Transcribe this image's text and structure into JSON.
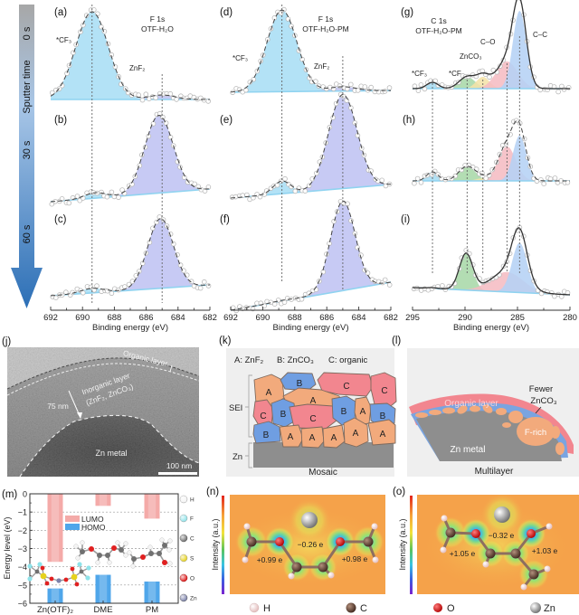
{
  "sputter_axis": {
    "title": "Sputter time",
    "ticks": [
      "0 s",
      "30 s",
      "60 s"
    ]
  },
  "panel_labels": {
    "j": "(j)",
    "k": "(k)",
    "l": "(l)",
    "m": "(m)",
    "n": "(n)",
    "o": "(o)"
  },
  "chart_data": [
    {
      "type": "line",
      "title": "F 1s",
      "subtitle": "OTF-H₂O",
      "xlabel": "Binding energy (eV)",
      "ylabel": "",
      "xlim": [
        692,
        682
      ],
      "xticks": [
        692,
        690,
        688,
        686,
        684,
        682
      ],
      "reference_lines": [
        689.4,
        685.0
      ],
      "annotations": [
        "*CF₃",
        "ZnF₂"
      ],
      "panels": [
        {
          "label": "(a)",
          "sputter_time": "0 s",
          "background": [
            0,
            0
          ],
          "components": [
            {
              "name": "*CF₃",
              "center": 689.4,
              "fwhm": 2.4,
              "amplitude": 0.97,
              "color": "#a9def5"
            },
            {
              "name": "ZnF₂",
              "center": 685.0,
              "fwhm": 1.9,
              "amplitude": 0.05,
              "color": "#bfc3f2"
            }
          ]
        },
        {
          "label": "(b)",
          "sputter_time": "30 s",
          "background": [
            0.02,
            0.16
          ],
          "components": [
            {
              "name": "*CF₃",
              "center": 689.2,
              "fwhm": 1.6,
              "amplitude": 0.06,
              "color": "#a9def5"
            },
            {
              "name": "ZnF₂",
              "center": 685.2,
              "fwhm": 2.1,
              "amplitude": 0.86,
              "color": "#bfc3f2"
            }
          ]
        },
        {
          "label": "(c)",
          "sputter_time": "60 s",
          "background": [
            0.08,
            0.2
          ],
          "components": [
            {
              "name": "*CF₃",
              "center": 689.4,
              "fwhm": 1.7,
              "amplitude": 0.05,
              "color": "#a9def5"
            },
            {
              "name": "ZnF₂",
              "center": 685.1,
              "fwhm": 1.9,
              "amplitude": 0.77,
              "color": "#bfc3f2"
            }
          ]
        }
      ]
    },
    {
      "type": "line",
      "title": "F 1s",
      "subtitle": "OTF-H₂O-PM",
      "xlabel": "Binding energy (eV)",
      "ylabel": "",
      "xlim": [
        692,
        682
      ],
      "xticks": [
        692,
        690,
        688,
        686,
        684,
        682
      ],
      "reference_lines": [
        688.8,
        685.0
      ],
      "annotations": [
        "*CF₃",
        "ZnF₂"
      ],
      "panels": [
        {
          "label": "(d)",
          "sputter_time": "0 s",
          "background": [
            0,
            0.02
          ],
          "components": [
            {
              "name": "*CF₃",
              "center": 688.8,
              "fwhm": 2.2,
              "amplitude": 0.95,
              "color": "#a9def5"
            },
            {
              "name": "ZnF₂",
              "center": 685.0,
              "fwhm": 2.0,
              "amplitude": 0.05,
              "color": "#bfc3f2"
            }
          ]
        },
        {
          "label": "(e)",
          "sputter_time": "30 s",
          "background": [
            0.03,
            0.18
          ],
          "components": [
            {
              "name": "*CF₃",
              "center": 688.8,
              "fwhm": 1.3,
              "amplitude": 0.14,
              "color": "#a9def5"
            },
            {
              "name": "ZnF₂",
              "center": 685.0,
              "fwhm": 2.1,
              "amplitude": 1.04,
              "color": "#bfc3f2"
            }
          ]
        },
        {
          "label": "(f)",
          "sputter_time": "60 s",
          "background": [
            0.0,
            0.31
          ],
          "components": [
            {
              "name": "*CF₃",
              "center": 688.8,
              "fwhm": 1.5,
              "amplitude": 0.01,
              "color": "#a9def5"
            },
            {
              "name": "ZnF₂",
              "center": 685.0,
              "fwhm": 1.8,
              "amplitude": 0.99,
              "color": "#bfc3f2"
            }
          ]
        }
      ]
    },
    {
      "type": "line",
      "title": "C 1s",
      "subtitle": "OTF-H₂O-PM",
      "xlabel": "Binding energy (eV)",
      "ylabel": "",
      "xlim": [
        295,
        280
      ],
      "xticks": [
        295,
        290,
        285,
        280
      ],
      "reference_lines": [
        293.1,
        289.8,
        288.3,
        286.0,
        284.8
      ],
      "annotations": [
        "*CF₃",
        "*CF",
        "ZnCO₃",
        "C–O",
        "C–C"
      ],
      "panels": [
        {
          "label": "(g)",
          "sputter_time": "0 s",
          "background": [
            0,
            0
          ],
          "components": [
            {
              "name": "*CF₃",
              "center": 293.1,
              "fwhm": 1.3,
              "amplitude": 0.07,
              "color": "#a6dcf2"
            },
            {
              "name": "ZnCO₃",
              "center": 289.8,
              "fwhm": 1.8,
              "amplitude": 0.13,
              "color": "#a9d8a9"
            },
            {
              "name": "*CF",
              "center": 288.3,
              "fwhm": 1.5,
              "amplitude": 0.13,
              "color": "#f4e2a8"
            },
            {
              "name": "C–O",
              "center": 286.0,
              "fwhm": 2.4,
              "amplitude": 0.3,
              "color": "#f5bcc3"
            },
            {
              "name": "C–C",
              "center": 284.8,
              "fwhm": 1.5,
              "amplitude": 0.86,
              "color": "#b5d2f5"
            }
          ]
        },
        {
          "label": "(h)",
          "sputter_time": "30 s",
          "background": [
            0,
            0
          ],
          "components": [
            {
              "name": "*CF₃",
              "center": 293.1,
              "fwhm": 1.3,
              "amplitude": 0.1,
              "color": "#a6dcf2"
            },
            {
              "name": "ZnCO₃",
              "center": 289.8,
              "fwhm": 1.9,
              "amplitude": 0.16,
              "color": "#a9d8a9"
            },
            {
              "name": "*CF",
              "center": 288.3,
              "fwhm": 1.5,
              "amplitude": 0.03,
              "color": "#f4e2a8"
            },
            {
              "name": "C–O",
              "center": 286.0,
              "fwhm": 2.0,
              "amplitude": 0.38,
              "color": "#f5bcc3"
            },
            {
              "name": "C–C",
              "center": 284.8,
              "fwhm": 1.5,
              "amplitude": 0.5,
              "color": "#b5d2f5"
            }
          ]
        },
        {
          "label": "(i)",
          "sputter_time": "60 s",
          "background": [
            0.12,
            0.04
          ],
          "components": [
            {
              "name": "*CF₃",
              "center": 293.1,
              "fwhm": 1.3,
              "amplitude": 0.01,
              "color": "#a6dcf2"
            },
            {
              "name": "ZnCO₃",
              "center": 289.9,
              "fwhm": 1.5,
              "amplitude": 0.4,
              "color": "#a9d8a9"
            },
            {
              "name": "*CF",
              "center": 288.3,
              "fwhm": 1.5,
              "amplitude": 0.0,
              "color": "#f4e2a8"
            },
            {
              "name": "C–O",
              "center": 286.0,
              "fwhm": 3.6,
              "amplitude": 0.22,
              "color": "#f5bcc3"
            },
            {
              "name": "C–C",
              "center": 284.8,
              "fwhm": 1.7,
              "amplitude": 0.55,
              "color": "#b5d2f5"
            }
          ]
        }
      ]
    },
    {
      "type": "bar",
      "title": "",
      "xlabel": "",
      "ylabel": "Energy level (eV)",
      "categories": [
        "Zn(OTF)₂",
        "DME",
        "PM"
      ],
      "series": [
        {
          "name": "LUMO",
          "values": [
            -3.73,
            -0.66,
            -1.36
          ],
          "from": 0,
          "color": "#f4aaa8"
        },
        {
          "name": "HOMO",
          "values": [
            -5.19,
            -4.44,
            -4.81
          ],
          "from": -6,
          "color": "#4fa6ea"
        }
      ],
      "ylim": [
        -6,
        0
      ],
      "yticks": [
        0,
        -1,
        -2,
        -3,
        -4,
        -5,
        -6
      ],
      "grid": true,
      "legend": "upper-center"
    }
  ],
  "tem": {
    "organic_layer": "Organic layer",
    "inorganic_layer": "Inorganic layer",
    "inorganic_composition": "(ZnF₂, ZnCO₃)",
    "thickness": "75 nm",
    "zn_metal": "Zn metal",
    "scale_bar": "100 nm"
  },
  "mosaic": {
    "legend": [
      "A: ZnF₂",
      "B: ZnCO₃",
      "C: organic"
    ],
    "sei": "SEI",
    "zn": "Zn",
    "caption": "Mosaic",
    "letters": {
      "a": "A",
      "b": "B",
      "c": "C"
    },
    "colors": {
      "a": "#f2aa7c",
      "b": "#6f9ee2",
      "c": "#f2868f",
      "zn": "#8e8e8e"
    }
  },
  "multilayer": {
    "organic_layer": "Organic layer",
    "fewer": "Fewer",
    "znco3": "ZnCO₃",
    "f_rich": "F-rich",
    "zn_metal": "Zn metal",
    "caption": "Multilayer"
  },
  "atom_legend": [
    {
      "symbol": "H",
      "color": "#f4f4f4"
    },
    {
      "symbol": "F",
      "color": "#8fe3ea"
    },
    {
      "symbol": "C",
      "color": "#707070"
    },
    {
      "symbol": "S",
      "color": "#e6d21c"
    },
    {
      "symbol": "O",
      "color": "#e02020"
    },
    {
      "symbol": "Zn",
      "color": "#7c82aa"
    }
  ],
  "charge_maps": {
    "dme": {
      "colorbar_label": "Intensity (a.u.)",
      "charges": [
        "−0.26 e",
        "+0.99 e",
        "+0.98 e"
      ],
      "legend": [
        "H",
        "C"
      ]
    },
    "pm": {
      "colorbar_label": "Intensity (a.u.)",
      "charges": [
        "−0.32 e",
        "+1.05 e",
        "+1.03 e"
      ],
      "legend": [
        "O",
        "Zn"
      ]
    }
  }
}
